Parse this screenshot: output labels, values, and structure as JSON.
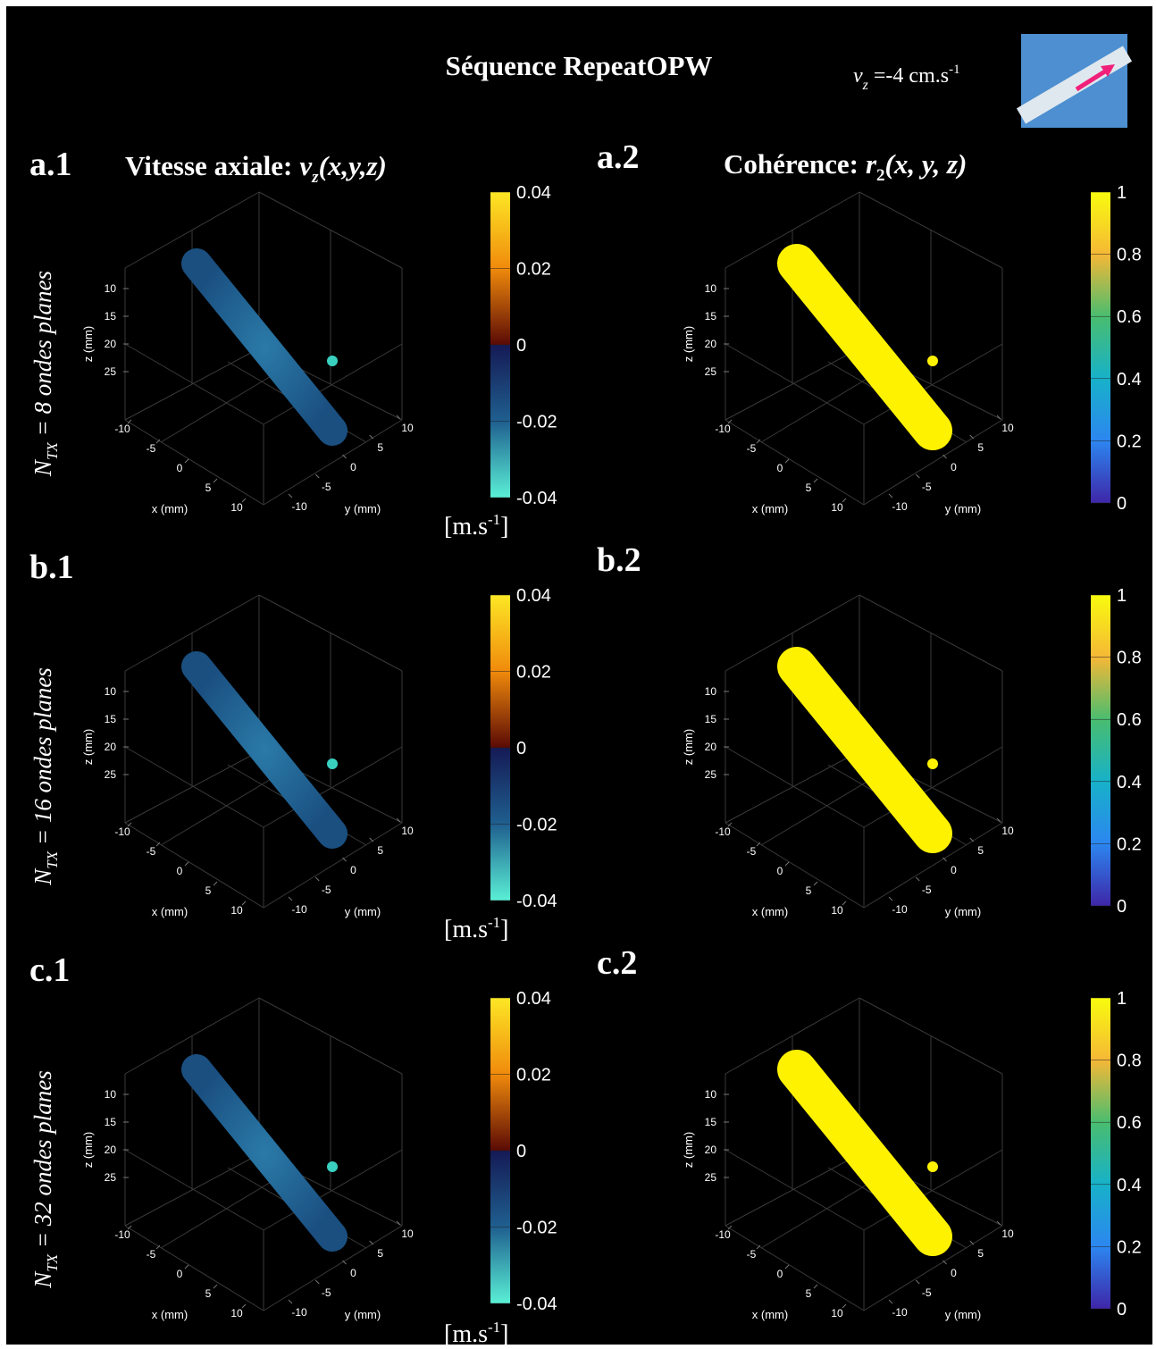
{
  "header": {
    "title": "Séquence RepeatOPW",
    "velocity": {
      "symbol": "v",
      "subscript": "z",
      "text": " =-4 cm.s",
      "superscript": "-1"
    }
  },
  "columns": [
    {
      "title": "Vitesse axiale:",
      "symbol": "v",
      "subscript": "z",
      "args": "(x,y,z)"
    },
    {
      "title": "Cohérence:",
      "symbol": "r",
      "subscript": "2",
      "args": "(x, y, z)"
    }
  ],
  "rows": [
    {
      "left_label": "a.1",
      "right_label": "a.2",
      "n_symbol": "N",
      "n_subscript": "TX",
      "n_text": " = 8 ondes planes"
    },
    {
      "left_label": "b.1",
      "right_label": "b.2",
      "n_symbol": "N",
      "n_subscript": "TX",
      "n_text": " = 16 ondes planes"
    },
    {
      "left_label": "c.1",
      "right_label": "c.2",
      "n_symbol": "N",
      "n_subscript": "TX",
      "n_text": " = 32 ondes planes"
    }
  ],
  "axes": {
    "x_label": "x (mm)",
    "y_label": "y (mm)",
    "z_label": "z (mm)",
    "xticks": [
      -10,
      -5,
      0,
      5,
      10
    ],
    "yticks": [
      -10,
      -5,
      0,
      5,
      10
    ],
    "zticks": [
      10,
      15,
      20,
      25
    ]
  },
  "colorbars": [
    {
      "lim": [
        -0.04,
        0.04
      ],
      "ticks": [
        0.04,
        0.02,
        0,
        -0.02,
        -0.04
      ],
      "unit": "[m.s",
      "unit_superscript": "-1",
      "unit_close": "]"
    },
    {
      "lim": [
        0,
        1
      ],
      "ticks": [
        1,
        0.8,
        0.6,
        0.4,
        0.2,
        0
      ]
    }
  ]
}
